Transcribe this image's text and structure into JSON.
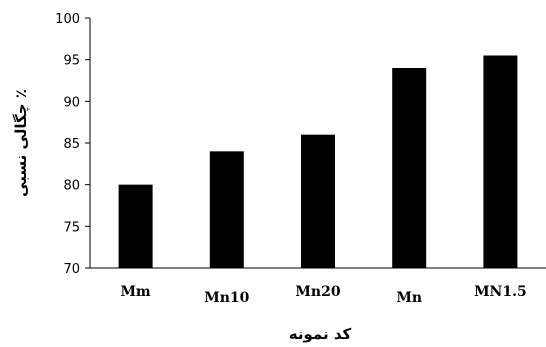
{
  "chart_data": {
    "type": "bar",
    "categories": [
      "Mm",
      "Mn10",
      "Mn20",
      "Mn",
      "MN1.5"
    ],
    "values": [
      80,
      84,
      86,
      94,
      95.5
    ],
    "xlabel": "کد نمونه",
    "ylabel": "٪ چگالی نسبی",
    "ylim": [
      70,
      100
    ],
    "yticks": [
      70,
      75,
      80,
      85,
      90,
      95,
      100
    ],
    "bar_color": "#000000",
    "grid": false
  }
}
